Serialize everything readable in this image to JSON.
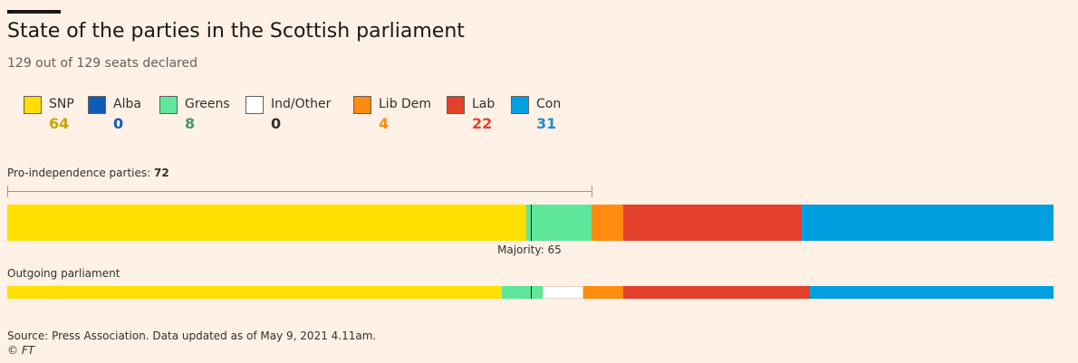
{
  "header": {
    "title": "State of the parties in the Scottish parliament",
    "subtitle": "129 out of 129 seats declared"
  },
  "legend": [
    {
      "name": "SNP",
      "value": "64",
      "swatch_color": "#ffdf00",
      "value_color": "#c9a400"
    },
    {
      "name": "Alba",
      "value": "0",
      "swatch_color": "#0f5bbb",
      "value_color": "#0f5bbb"
    },
    {
      "name": "Greens",
      "value": "8",
      "swatch_color": "#5ee69a",
      "value_color": "#3f9966"
    },
    {
      "name": "Ind/Other",
      "value": "0",
      "swatch_color": "#ffffff",
      "value_color": "#33302e"
    },
    {
      "name": "Lib Dem",
      "value": "4",
      "swatch_color": "#ff8b0f",
      "value_color": "#ff8b0f"
    },
    {
      "name": "Lab",
      "value": "22",
      "swatch_color": "#e5402b",
      "value_color": "#e5402b"
    },
    {
      "name": "Con",
      "value": "31",
      "swatch_color": "#009fe0",
      "value_color": "#1a8fd0"
    }
  ],
  "annotations": {
    "pro_indep_label": "Pro-independence parties:",
    "pro_indep_value": "72",
    "majority_label": "Majority: 65",
    "outgoing_label": "Outgoing parliament"
  },
  "footer": {
    "source": "Source: Press Association. Data updated as of May 9, 2021 4.11am.",
    "copyright": "© FT"
  },
  "chart_data": {
    "type": "bar",
    "orientation": "horizontal-stacked",
    "title": "State of the parties in the Scottish parliament",
    "subtitle": "129 out of 129 seats declared",
    "total_seats": 129,
    "majority": 65,
    "pro_independence_total": 72,
    "categories": [
      "SNP",
      "Alba",
      "Greens",
      "Ind/Other",
      "Lib Dem",
      "Lab",
      "Con"
    ],
    "colors": [
      "#ffdf00",
      "#0f5bbb",
      "#5ee69a",
      "#ffffff",
      "#ff8b0f",
      "#e5402b",
      "#009fe0"
    ],
    "series": [
      {
        "name": "",
        "values": [
          64,
          0,
          8,
          0,
          4,
          22,
          31
        ]
      },
      {
        "name": "Outgoing parliament",
        "values": [
          61,
          0,
          5,
          5,
          5,
          23,
          30
        ]
      }
    ]
  }
}
